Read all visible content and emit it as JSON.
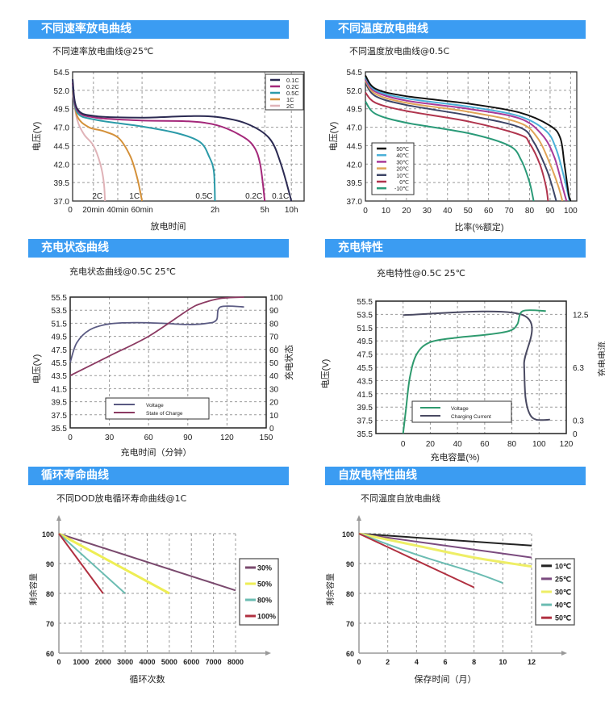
{
  "colors": {
    "header_bg": "#3b9cf2"
  },
  "panels": [
    {
      "header": "不同速率放电曲线",
      "subtitle": "不同速率放电曲线@25℃"
    },
    {
      "header": "不同温度放电曲线",
      "subtitle": "不同温度放电曲线@0.5C"
    },
    {
      "header": "充电状态曲线",
      "subtitle": "充电状态曲线@0.5C 25℃"
    },
    {
      "header": "充电特性",
      "subtitle": "充电特性@0.5C 25℃"
    },
    {
      "header": "循环寿命曲线",
      "subtitle": "不同DOD放电循环寿命曲线@1C"
    },
    {
      "header": "自放电特性曲线",
      "subtitle": "不同温度自放电曲线"
    }
  ],
  "chart_data": [
    {
      "type": "line",
      "title": "不同速率放电曲线@25℃",
      "xlabel": "放电时间",
      "ylabel": "电压(V)",
      "ylim": [
        37.0,
        54.5
      ],
      "yticks": [
        "54.5",
        "52.0",
        "49.5",
        "47.0",
        "44.5",
        "42.0",
        "39.5",
        "37.0"
      ],
      "xticks": [
        "0",
        "20min",
        "40min",
        "60min",
        "2h",
        "5h",
        "10h"
      ],
      "x_tick_pos": [
        0,
        0.09,
        0.195,
        0.3,
        0.615,
        0.83,
        0.945
      ],
      "end_labels": [
        "2C",
        "1C",
        "0.5C",
        "0.2C",
        "0.1C"
      ],
      "legend": "top-right",
      "series": [
        {
          "name": "0.1C",
          "color": "#2b2a52",
          "points": [
            [
              0,
              53.5
            ],
            [
              0.02,
              49.5
            ],
            [
              0.1,
              48.5
            ],
            [
              0.3,
              48.3
            ],
            [
              0.5,
              48.5
            ],
            [
              0.62,
              48.4
            ],
            [
              0.75,
              47.5
            ],
            [
              0.85,
              45.5
            ],
            [
              0.9,
              42
            ],
            [
              0.945,
              37
            ]
          ]
        },
        {
          "name": "0.2C",
          "color": "#a4287a",
          "points": [
            [
              0,
              53
            ],
            [
              0.02,
              49.3
            ],
            [
              0.1,
              48.3
            ],
            [
              0.3,
              47.9
            ],
            [
              0.5,
              47.8
            ],
            [
              0.62,
              47.3
            ],
            [
              0.72,
              46
            ],
            [
              0.78,
              44.5
            ],
            [
              0.81,
              42
            ],
            [
              0.83,
              37
            ]
          ]
        },
        {
          "name": "0.5C",
          "color": "#2b9aa8",
          "points": [
            [
              0,
              52.5
            ],
            [
              0.02,
              49
            ],
            [
              0.1,
              48
            ],
            [
              0.3,
              47.1
            ],
            [
              0.45,
              46.2
            ],
            [
              0.55,
              45
            ],
            [
              0.59,
              43
            ],
            [
              0.61,
              41
            ],
            [
              0.615,
              37
            ]
          ]
        },
        {
          "name": "1C",
          "color": "#d4913a",
          "points": [
            [
              0,
              52
            ],
            [
              0.02,
              48.5
            ],
            [
              0.07,
              47
            ],
            [
              0.13,
              46.5
            ],
            [
              0.2,
              45.5
            ],
            [
              0.25,
              43
            ],
            [
              0.28,
              40
            ],
            [
              0.3,
              37
            ]
          ]
        },
        {
          "name": "2C",
          "color": "#e0b3b8",
          "points": [
            [
              0,
              51.5
            ],
            [
              0.02,
              48
            ],
            [
              0.05,
              46
            ],
            [
              0.09,
              44.5
            ],
            [
              0.12,
              42
            ],
            [
              0.135,
              39.5
            ],
            [
              0.14,
              37
            ]
          ]
        }
      ]
    },
    {
      "type": "line",
      "title": "不同温度放电曲线@0.5C",
      "xlabel": "比率(%额定)",
      "ylabel": "电压(V)",
      "ylim": [
        37.0,
        54.5
      ],
      "xlim": [
        0,
        103
      ],
      "yticks": [
        "54.5",
        "52.0",
        "49.5",
        "47.0",
        "44.5",
        "42.0",
        "39.5",
        "37.0"
      ],
      "xticks": [
        0,
        10,
        20,
        30,
        40,
        50,
        60,
        70,
        80,
        90,
        100
      ],
      "legend": "bottom-left",
      "series": [
        {
          "name": "50℃",
          "color": "#111111",
          "points": [
            [
              0,
              54
            ],
            [
              5,
              52.2
            ],
            [
              20,
              51.2
            ],
            [
              50,
              50.2
            ],
            [
              75,
              49
            ],
            [
              90,
              47.2
            ],
            [
              95,
              45.5
            ],
            [
              97,
              42
            ],
            [
              99,
              38
            ],
            [
              100,
              37
            ]
          ]
        },
        {
          "name": "40℃",
          "color": "#4ab0d8",
          "points": [
            [
              0,
              53.8
            ],
            [
              5,
              52
            ],
            [
              20,
              50.9
            ],
            [
              50,
              49.8
            ],
            [
              75,
              48.5
            ],
            [
              88,
              46.5
            ],
            [
              93,
              44
            ],
            [
              97,
              40
            ],
            [
              99.5,
              37
            ]
          ]
        },
        {
          "name": "30℃",
          "color": "#a83a9a",
          "points": [
            [
              0,
              53.5
            ],
            [
              5,
              51.8
            ],
            [
              20,
              50.6
            ],
            [
              50,
              49.5
            ],
            [
              75,
              48.2
            ],
            [
              86,
              46
            ],
            [
              92,
              43
            ],
            [
              96,
              39
            ],
            [
              98,
              37
            ]
          ]
        },
        {
          "name": "20℃",
          "color": "#e0a458",
          "points": [
            [
              0,
              53.3
            ],
            [
              5,
              51.5
            ],
            [
              20,
              50.3
            ],
            [
              50,
              49.1
            ],
            [
              75,
              47.6
            ],
            [
              84,
              45.5
            ],
            [
              90,
              42
            ],
            [
              94,
              39
            ],
            [
              96,
              37
            ]
          ]
        },
        {
          "name": "10℃",
          "color": "#3d4566",
          "points": [
            [
              0,
              53
            ],
            [
              5,
              51.2
            ],
            [
              20,
              50
            ],
            [
              50,
              48.6
            ],
            [
              75,
              47
            ],
            [
              82,
              45
            ],
            [
              88,
              41.5
            ],
            [
              91,
              39
            ],
            [
              93,
              37
            ]
          ]
        },
        {
          "name": "0℃",
          "color": "#b0344d",
          "points": [
            [
              0,
              51.7
            ],
            [
              5,
              50.3
            ],
            [
              20,
              49.2
            ],
            [
              50,
              47.8
            ],
            [
              75,
              46
            ],
            [
              80,
              44.8
            ],
            [
              85,
              42
            ],
            [
              88,
              39
            ],
            [
              89,
              37
            ]
          ]
        },
        {
          "name": "-10℃",
          "color": "#2a9a78",
          "points": [
            [
              0,
              50.5
            ],
            [
              5,
              48.8
            ],
            [
              20,
              47.6
            ],
            [
              50,
              46.2
            ],
            [
              70,
              44.5
            ],
            [
              76,
              42.5
            ],
            [
              80,
              39.5
            ],
            [
              82,
              37
            ]
          ]
        }
      ]
    },
    {
      "type": "line",
      "title": "充电状态曲线@0.5C 25℃",
      "xlabel": "充电时间（分钟）",
      "ylabel": "电压(V)",
      "y2label": "充电状态",
      "xlim": [
        0,
        150
      ],
      "ylim": [
        35.5,
        55.5
      ],
      "y2lim": [
        0,
        100
      ],
      "xticks": [
        0,
        30,
        60,
        90,
        120,
        150
      ],
      "yticks": [
        "55.5",
        "53.5",
        "51.5",
        "49.5",
        "47.5",
        "45.5",
        "43.5",
        "41.5",
        "39.5",
        "37.5",
        "35.5"
      ],
      "y2ticks": [
        100,
        90,
        80,
        70,
        60,
        50,
        40,
        30,
        20,
        10,
        0
      ],
      "legend": "bottom-center",
      "series": [
        {
          "name": "Voltage",
          "axis": "left",
          "color": "#5a5a82",
          "points": [
            [
              0,
              45.5
            ],
            [
              5,
              48.5
            ],
            [
              15,
              50.5
            ],
            [
              30,
              51.4
            ],
            [
              50,
              51.6
            ],
            [
              70,
              51.5
            ],
            [
              90,
              51.3
            ],
            [
              105,
              51.5
            ],
            [
              112,
              52
            ],
            [
              115,
              54
            ],
            [
              133,
              54
            ]
          ]
        },
        {
          "name": "State of Charge",
          "axis": "right",
          "color": "#8b3a62",
          "points": [
            [
              0,
              40
            ],
            [
              30,
              55
            ],
            [
              60,
              70
            ],
            [
              90,
              90
            ],
            [
              100,
              95
            ],
            [
              115,
              99
            ],
            [
              133,
              100
            ]
          ]
        }
      ]
    },
    {
      "type": "line",
      "title": "充电特性@0.5C 25℃",
      "xlabel": "充电容量(%)",
      "ylabel": "电压(V)",
      "y2label": "充电电流",
      "xlim": [
        -20,
        120
      ],
      "ylim": [
        35.5,
        55.5
      ],
      "xticks": [
        0,
        20,
        40,
        60,
        80,
        100,
        120
      ],
      "yticks": [
        "55.5",
        "53.5",
        "51.5",
        "49.5",
        "47.5",
        "45.5",
        "43.5",
        "41.5",
        "39.5",
        "37.5",
        "35.5"
      ],
      "y2ticks": [
        {
          "label": "12.5",
          "v": 53.5
        },
        {
          "label": "6.3",
          "v": 45.5
        },
        {
          "label": "0.3",
          "v": 37.5
        },
        {
          "label": "0",
          "v": 35.5
        }
      ],
      "legend": "bottom-left",
      "series": [
        {
          "name": "Voltage",
          "color": "#2e9a6e",
          "points": [
            [
              0,
              35.5
            ],
            [
              2,
              39
            ],
            [
              5,
              44
            ],
            [
              10,
              47.5
            ],
            [
              20,
              49.3
            ],
            [
              40,
              50
            ],
            [
              60,
              50.4
            ],
            [
              78,
              51
            ],
            [
              84,
              52
            ],
            [
              88,
              54
            ],
            [
              105,
              54
            ]
          ]
        },
        {
          "name": "Charging Current",
          "color": "#4a4a62",
          "points": [
            [
              0,
              53.4
            ],
            [
              88,
              53.4
            ],
            [
              89,
              46
            ],
            [
              90,
              41
            ],
            [
              93,
              38.5
            ],
            [
              98,
              37.6
            ],
            [
              108,
              37.6
            ]
          ]
        }
      ]
    },
    {
      "type": "line",
      "title": "不同DOD放电循环寿命曲线@1C",
      "xlabel": "循环次数",
      "ylabel": "剩余容量",
      "xlim": [
        0,
        8000
      ],
      "ylim": [
        60,
        100
      ],
      "xticks": [
        0,
        1000,
        2000,
        3000,
        4000,
        5000,
        6000,
        7000,
        8000
      ],
      "yticks": [
        100,
        90,
        80,
        70,
        60
      ],
      "legend": "right",
      "series": [
        {
          "name": "30%",
          "color": "#7a4a6e",
          "points": [
            [
              0,
              100
            ],
            [
              8000,
              81
            ]
          ]
        },
        {
          "name": "50%",
          "color": "#eeee55",
          "points": [
            [
              0,
              100
            ],
            [
              5000,
              80
            ]
          ]
        },
        {
          "name": "80%",
          "color": "#6bbcb2",
          "points": [
            [
              0,
              100
            ],
            [
              3000,
              80
            ]
          ]
        },
        {
          "name": "100%",
          "color": "#b03040",
          "points": [
            [
              0,
              100
            ],
            [
              2000,
              80
            ]
          ]
        }
      ]
    },
    {
      "type": "line",
      "title": "不同温度自放电曲线",
      "xlabel": "保存时间（月）",
      "ylabel": "剩余容量",
      "xlim": [
        0,
        12
      ],
      "ylim": [
        60,
        100
      ],
      "xticks": [
        0,
        2,
        4,
        6,
        8,
        10,
        12
      ],
      "yticks": [
        100,
        90,
        80,
        70,
        60
      ],
      "legend": "right",
      "series": [
        {
          "name": "10℃",
          "color": "#222222",
          "points": [
            [
              0,
              100
            ],
            [
              12,
              96
            ]
          ]
        },
        {
          "name": "25℃",
          "color": "#7a4a7e",
          "points": [
            [
              0,
              100
            ],
            [
              12,
              92
            ]
          ]
        },
        {
          "name": "30℃",
          "color": "#eeee66",
          "points": [
            [
              0,
              100
            ],
            [
              4,
              96
            ],
            [
              8,
              92
            ],
            [
              12,
              89
            ]
          ]
        },
        {
          "name": "40℃",
          "color": "#6bbcb2",
          "points": [
            [
              0,
              100
            ],
            [
              4,
              93
            ],
            [
              8,
              87
            ],
            [
              10,
              83.5
            ]
          ]
        },
        {
          "name": "50℃",
          "color": "#b03040",
          "points": [
            [
              0,
              100
            ],
            [
              4,
              91
            ],
            [
              8,
              82
            ]
          ]
        }
      ]
    }
  ]
}
